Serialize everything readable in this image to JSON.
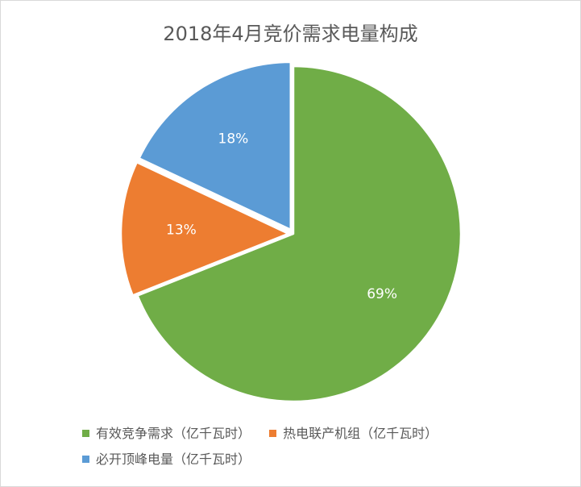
{
  "chart_data": {
    "type": "pie",
    "title": "2018年4月竞价需求电量构成",
    "slices": [
      {
        "name": "有效竞争需求（亿千瓦时）",
        "value": 69,
        "label": "69%",
        "color": "#70ad47",
        "exploded": false
      },
      {
        "name": "热电联产机组（亿千瓦时）",
        "value": 13,
        "label": "13%",
        "color": "#ed7d31",
        "exploded": true
      },
      {
        "name": "必开顶峰电量（亿千瓦时）",
        "value": 18,
        "label": "18%",
        "color": "#5b9bd5",
        "exploded": true
      }
    ],
    "legend_position": "bottom",
    "start": "12 o'clock",
    "direction": "clockwise"
  }
}
